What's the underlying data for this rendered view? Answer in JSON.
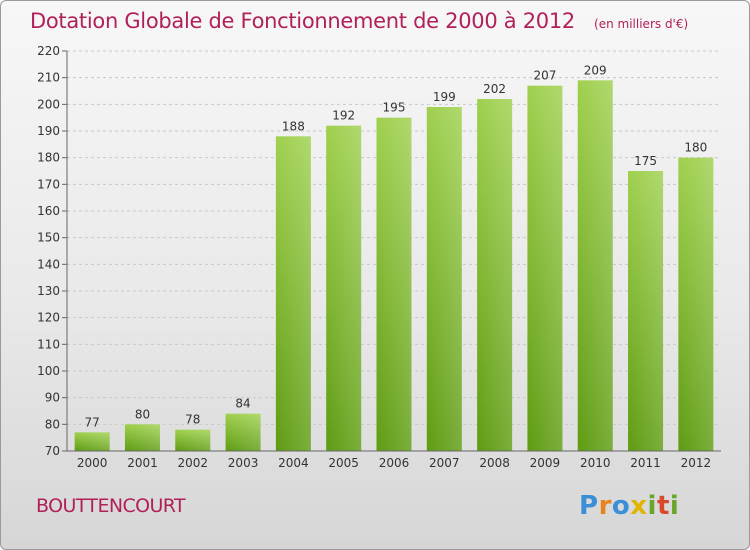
{
  "title": "Dotation Globale de Fonctionnement de 2000 à 2012",
  "unit": "(en milliers d'€)",
  "city": "BOUTTENCOURT",
  "brand": {
    "letters": [
      "P",
      "r",
      "o",
      "x",
      "i",
      "t",
      "i"
    ],
    "colors": [
      "#3b8fd6",
      "#e8831e",
      "#3b8fd6",
      "#e0b400",
      "#6aa62a",
      "#d94a2a",
      "#6aa62a"
    ]
  },
  "colors": {
    "bar_top": "#9fd04e",
    "bar_bottom": "#5e9c12",
    "title": "#b0205a"
  },
  "chart_data": {
    "type": "bar",
    "title": "Dotation Globale de Fonctionnement de 2000 à 2012",
    "subtitle": "(en milliers d'€)",
    "categories": [
      "2000",
      "2001",
      "2002",
      "2003",
      "2004",
      "2005",
      "2006",
      "2007",
      "2008",
      "2009",
      "2010",
      "2011",
      "2012"
    ],
    "values": [
      77,
      80,
      78,
      84,
      188,
      192,
      195,
      199,
      202,
      207,
      209,
      175,
      180
    ],
    "ylim": [
      70,
      220
    ],
    "yticks": [
      70,
      80,
      90,
      100,
      110,
      120,
      130,
      140,
      150,
      160,
      170,
      180,
      190,
      200,
      210,
      220
    ],
    "grid": true,
    "xlabel": "",
    "ylabel": ""
  }
}
